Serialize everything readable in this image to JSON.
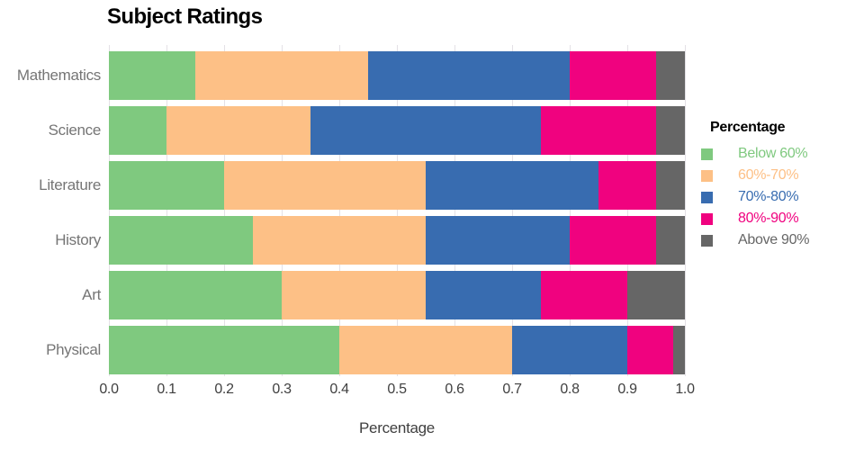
{
  "chart_data": {
    "type": "bar",
    "orientation": "horizontal",
    "stacked": true,
    "title": "Subject Ratings",
    "xlabel": "Percentage",
    "ylabel": "",
    "legend_title": "Percentage",
    "legend_position": "right",
    "grid": "vertical-only",
    "xlim": [
      0.0,
      1.0
    ],
    "xticks": [
      0.0,
      0.1,
      0.2,
      0.3,
      0.4,
      0.5,
      0.6,
      0.7,
      0.8,
      0.9,
      1.0
    ],
    "xtick_labels": [
      "0.0",
      "0.1",
      "0.2",
      "0.3",
      "0.4",
      "0.5",
      "0.6",
      "0.7",
      "0.8",
      "0.9",
      "1.0"
    ],
    "categories": [
      "Mathematics",
      "Science",
      "Literature",
      "History",
      "Art",
      "Physical"
    ],
    "series": [
      {
        "name": "Below 60%",
        "color": "#7fc97f",
        "values": [
          0.15,
          0.1,
          0.2,
          0.25,
          0.3,
          0.4
        ]
      },
      {
        "name": "60%-70%",
        "color": "#fdc086",
        "values": [
          0.3,
          0.25,
          0.35,
          0.3,
          0.25,
          0.3
        ]
      },
      {
        "name": "70%-80%",
        "color": "#386cb0",
        "values": [
          0.35,
          0.4,
          0.3,
          0.25,
          0.2,
          0.2
        ]
      },
      {
        "name": "80%-90%",
        "color": "#f0027f",
        "values": [
          0.15,
          0.2,
          0.1,
          0.15,
          0.15,
          0.08
        ]
      },
      {
        "name": "Above 90%",
        "color": "#666666",
        "values": [
          0.05,
          0.05,
          0.05,
          0.05,
          0.1,
          0.02
        ]
      }
    ]
  },
  "colors": {
    "background": "#ffffff",
    "gridline": "#e4e1e6",
    "title_text": "#000000",
    "category_text": "#757575",
    "axis_text": "#404040"
  }
}
